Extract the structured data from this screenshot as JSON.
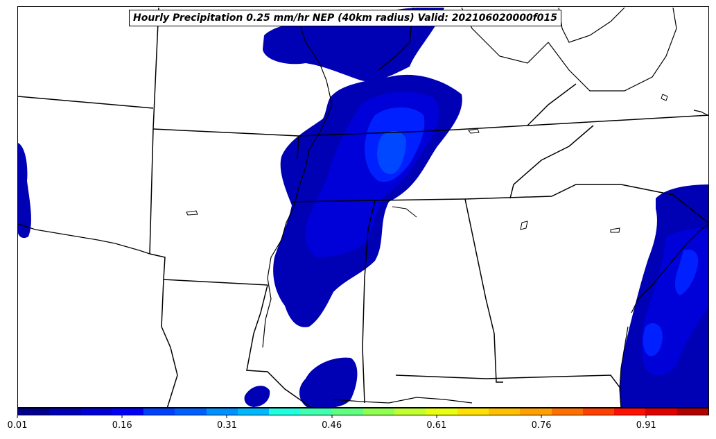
{
  "title": "Hourly Precipitation 0.25 mm/hr NEP (40km radius) Valid: 202106020000f015",
  "colorbar": {
    "colors": [
      "#00008c",
      "#0000b4",
      "#0000d8",
      "#0000ff",
      "#0040ff",
      "#0060ff",
      "#0090ff",
      "#00b8ff",
      "#1effe0",
      "#40ffb0",
      "#60ff80",
      "#90ff50",
      "#c0ff30",
      "#e8ff10",
      "#ffe000",
      "#ffc000",
      "#ffa000",
      "#ff7000",
      "#ff4000",
      "#ff1000",
      "#e00000",
      "#b00000"
    ],
    "ticks": [
      "0.01",
      "0.16",
      "0.31",
      "0.46",
      "0.61",
      "0.76",
      "0.91"
    ],
    "tick_values": [
      0.01,
      0.16,
      0.31,
      0.46,
      0.61,
      0.76,
      0.91
    ],
    "min": 0.01,
    "max": 1.0
  },
  "palette": {
    "level1": "#0000b4",
    "level2": "#0000d8",
    "level3": "#0020ff",
    "level4": "#0048ff"
  }
}
